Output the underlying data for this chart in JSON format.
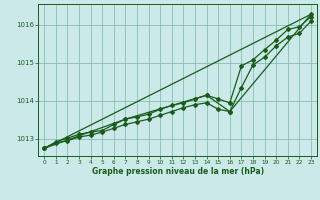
{
  "bg_color": "#cbe9e9",
  "plot_bg_color": "#cbe9e9",
  "grid_color": "#7ab8a8",
  "line_color": "#1a5c1a",
  "xlabel": "Graphe pression niveau de la mer (hPa)",
  "xlim": [
    -0.5,
    23.5
  ],
  "ylim": [
    1012.55,
    1016.55
  ],
  "yticks": [
    1013,
    1014,
    1015,
    1016
  ],
  "xticks": [
    0,
    1,
    2,
    3,
    4,
    5,
    6,
    7,
    8,
    9,
    10,
    11,
    12,
    13,
    14,
    15,
    16,
    17,
    18,
    19,
    20,
    21,
    22,
    23
  ],
  "series_x": [
    0,
    1,
    2,
    3,
    4,
    5,
    6,
    7,
    8,
    9,
    10,
    11,
    12,
    13,
    14,
    15,
    16,
    17,
    18,
    19,
    20,
    21,
    22,
    23
  ],
  "pressure1": [
    1012.75,
    1012.9,
    1012.95,
    1013.05,
    1013.1,
    1013.18,
    1013.28,
    1013.38,
    1013.45,
    1013.52,
    1013.62,
    1013.72,
    1013.82,
    1013.9,
    1013.95,
    1013.78,
    1013.72,
    1014.35,
    1014.95,
    1015.15,
    1015.45,
    1015.68,
    1015.78,
    1016.1
  ],
  "pressure2": [
    1012.75,
    1012.92,
    1013.02,
    1013.12,
    1013.18,
    1013.22,
    1013.38,
    1013.52,
    1013.58,
    1013.65,
    1013.78,
    1013.88,
    1013.95,
    1014.05,
    1014.15,
    1014.05,
    1013.95,
    1014.92,
    1015.08,
    1015.35,
    1015.6,
    1015.88,
    1015.95,
    1016.22
  ],
  "line3_x": [
    0,
    23
  ],
  "line3_y": [
    1012.75,
    1016.28
  ],
  "line4_x": [
    0,
    7,
    14,
    16,
    23
  ],
  "line4_y": [
    1012.75,
    1013.52,
    1014.15,
    1013.72,
    1016.28
  ],
  "marker": "D",
  "markersize": 2.0,
  "linewidth": 0.9
}
